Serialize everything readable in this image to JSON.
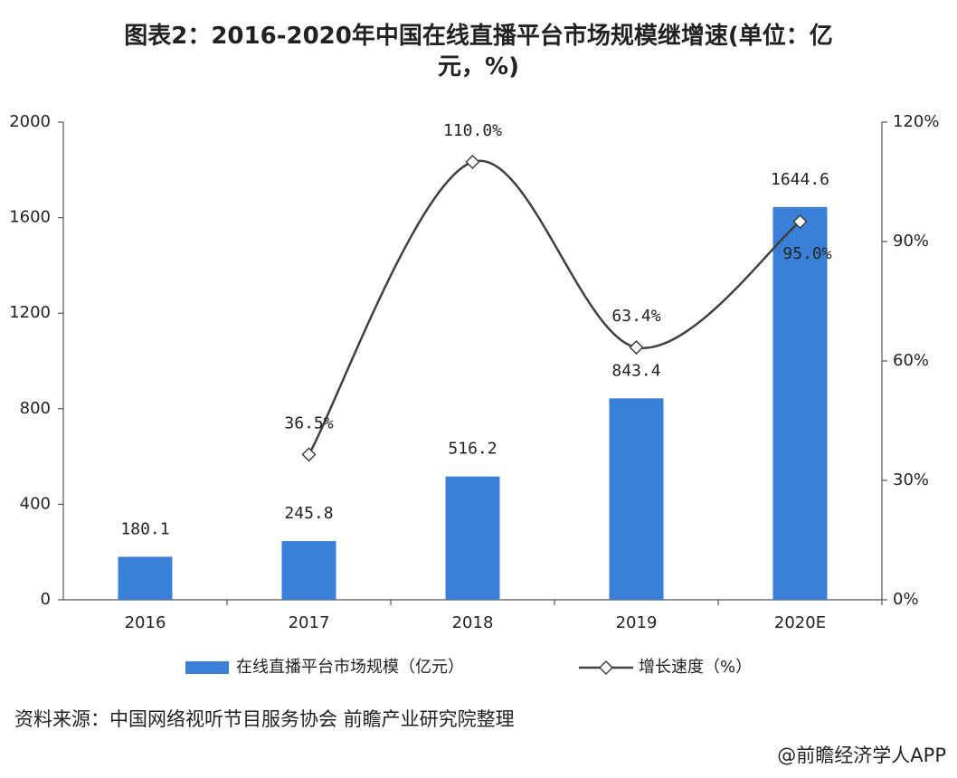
{
  "chart_data": {
    "type": "combo",
    "title": "图表2：2016-2020年中国在线直播平台市场规模继增速(单位：亿元，%)",
    "categories": [
      "2016",
      "2017",
      "2018",
      "2019",
      "2020E"
    ],
    "series": [
      {
        "name": "在线直播平台市场规模（亿元）",
        "type": "bar",
        "color": "#3a80d8",
        "values": [
          180.1,
          245.8,
          516.2,
          843.4,
          1644.6
        ]
      },
      {
        "name": "增长速度（%）",
        "type": "line",
        "axis": "y2",
        "color": "#404040",
        "values": [
          null,
          36.5,
          110.0,
          63.4,
          95.0
        ],
        "value_labels": [
          null,
          "36.5%",
          "110.0%",
          "63.4%",
          "95.0%"
        ]
      }
    ],
    "ylim": [
      0,
      2000
    ],
    "yticks": [
      0,
      400,
      800,
      1200,
      1600,
      2000
    ],
    "y2lim": [
      0,
      120
    ],
    "y2ticks": [
      {
        "value": 0,
        "label": "0%"
      },
      {
        "value": 30,
        "label": "30%"
      },
      {
        "value": 60,
        "label": "60%"
      },
      {
        "value": 90,
        "label": "90%"
      },
      {
        "value": 120,
        "label": "120%"
      }
    ],
    "legend": "bottom",
    "source": "资料来源：中国网络视听节目服务协会 前瞻产业研究院整理",
    "credit": "@前瞻经济学人APP"
  }
}
